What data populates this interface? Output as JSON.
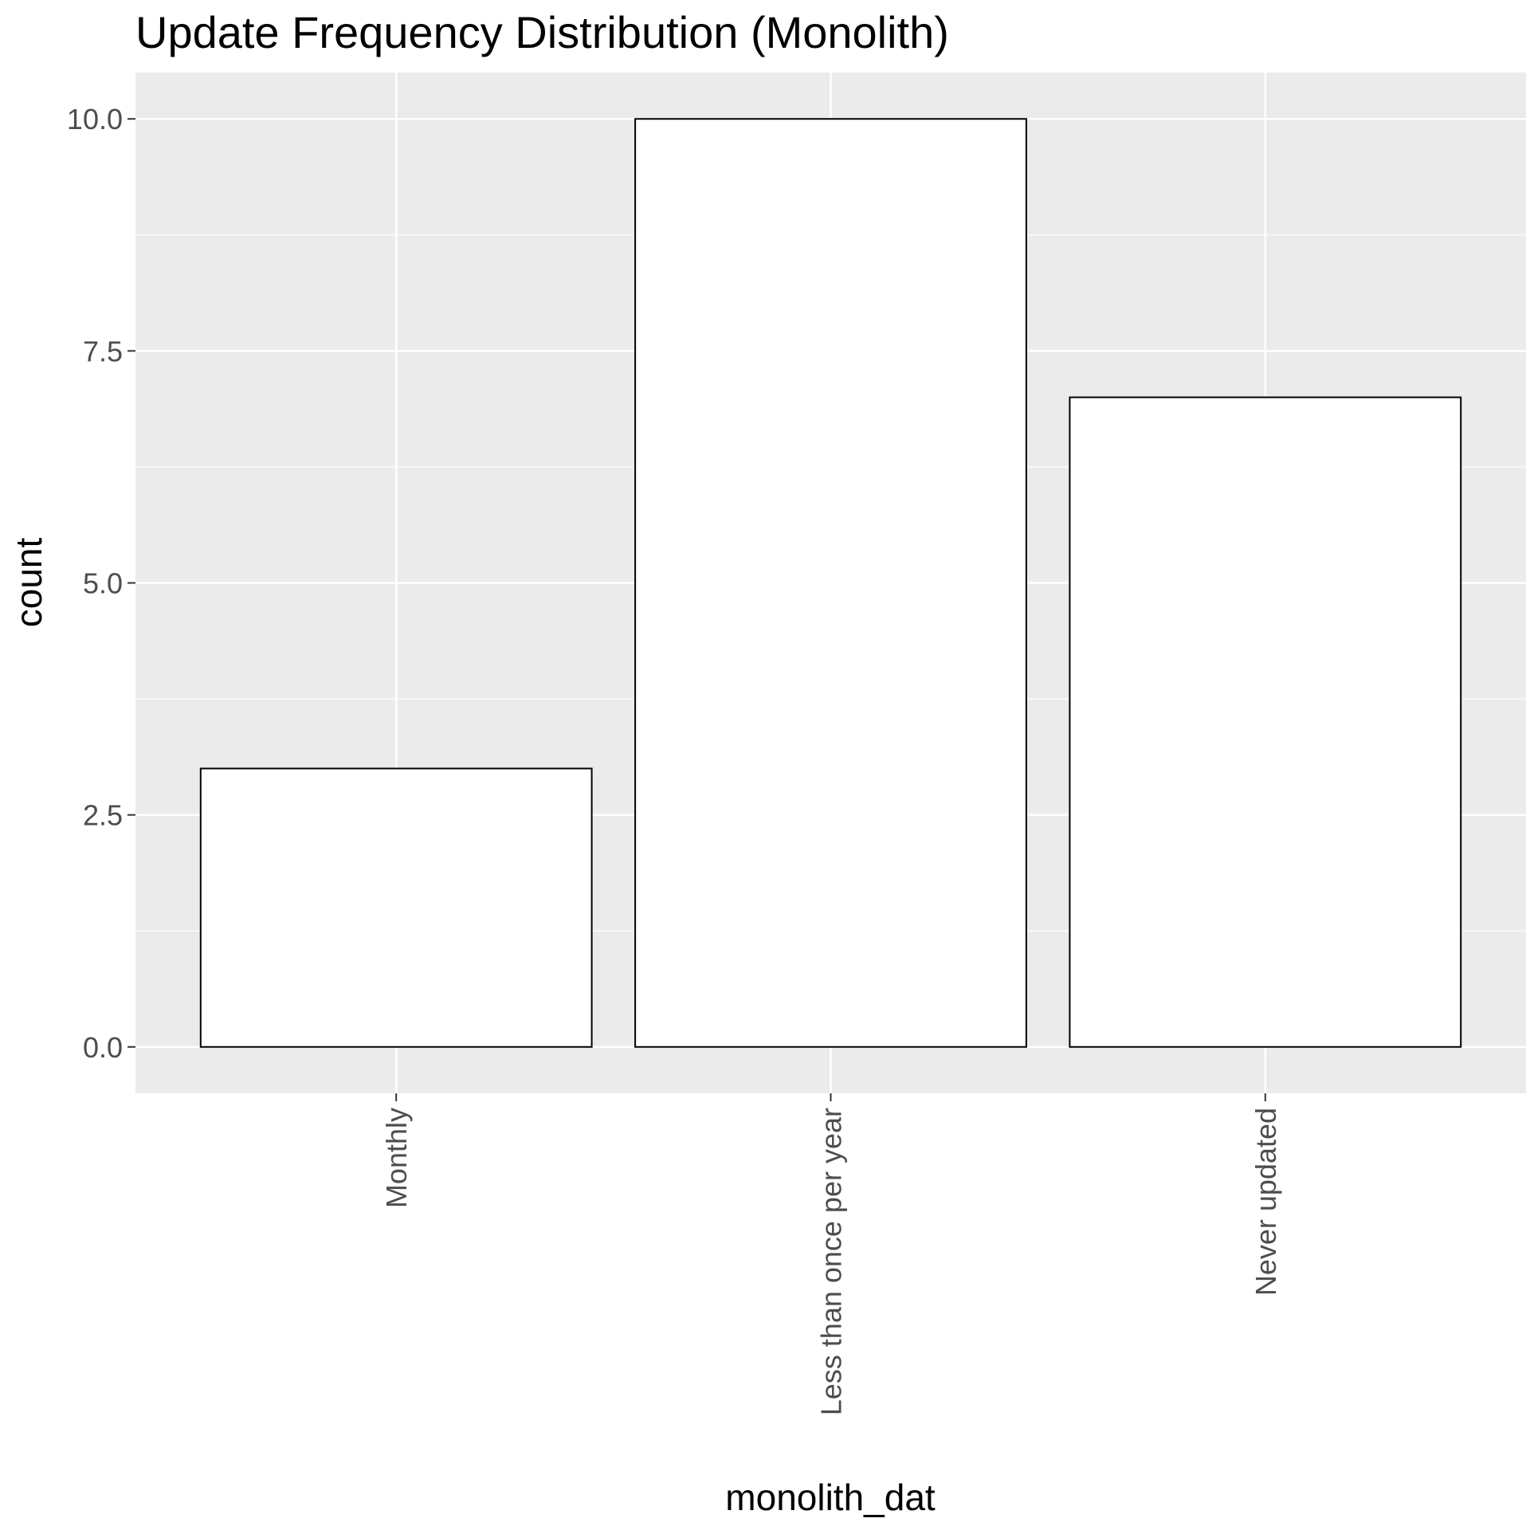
{
  "chart_data": {
    "type": "bar",
    "title": "Update Frequency Distribution (Monolith)",
    "xlabel": "monolith_dat",
    "ylabel": "count",
    "categories": [
      "Monthly",
      "Less than once per year",
      "Never updated"
    ],
    "values": [
      3,
      10,
      7
    ],
    "ylim": [
      -0.5,
      10.5
    ],
    "yticks": [
      0,
      2.5,
      5,
      7.5,
      10
    ],
    "ytick_labels": [
      "0.0",
      "2.5",
      "5.0",
      "7.5",
      "10.0"
    ],
    "grid": true,
    "legend": "none",
    "colors": {
      "panel_background": "#ebebeb",
      "grid_line": "#ffffff",
      "bar_fill": "#ffffff",
      "bar_outline": "#000000",
      "tick_text": "#4d4d4d",
      "tick_mark": "#333333"
    }
  }
}
